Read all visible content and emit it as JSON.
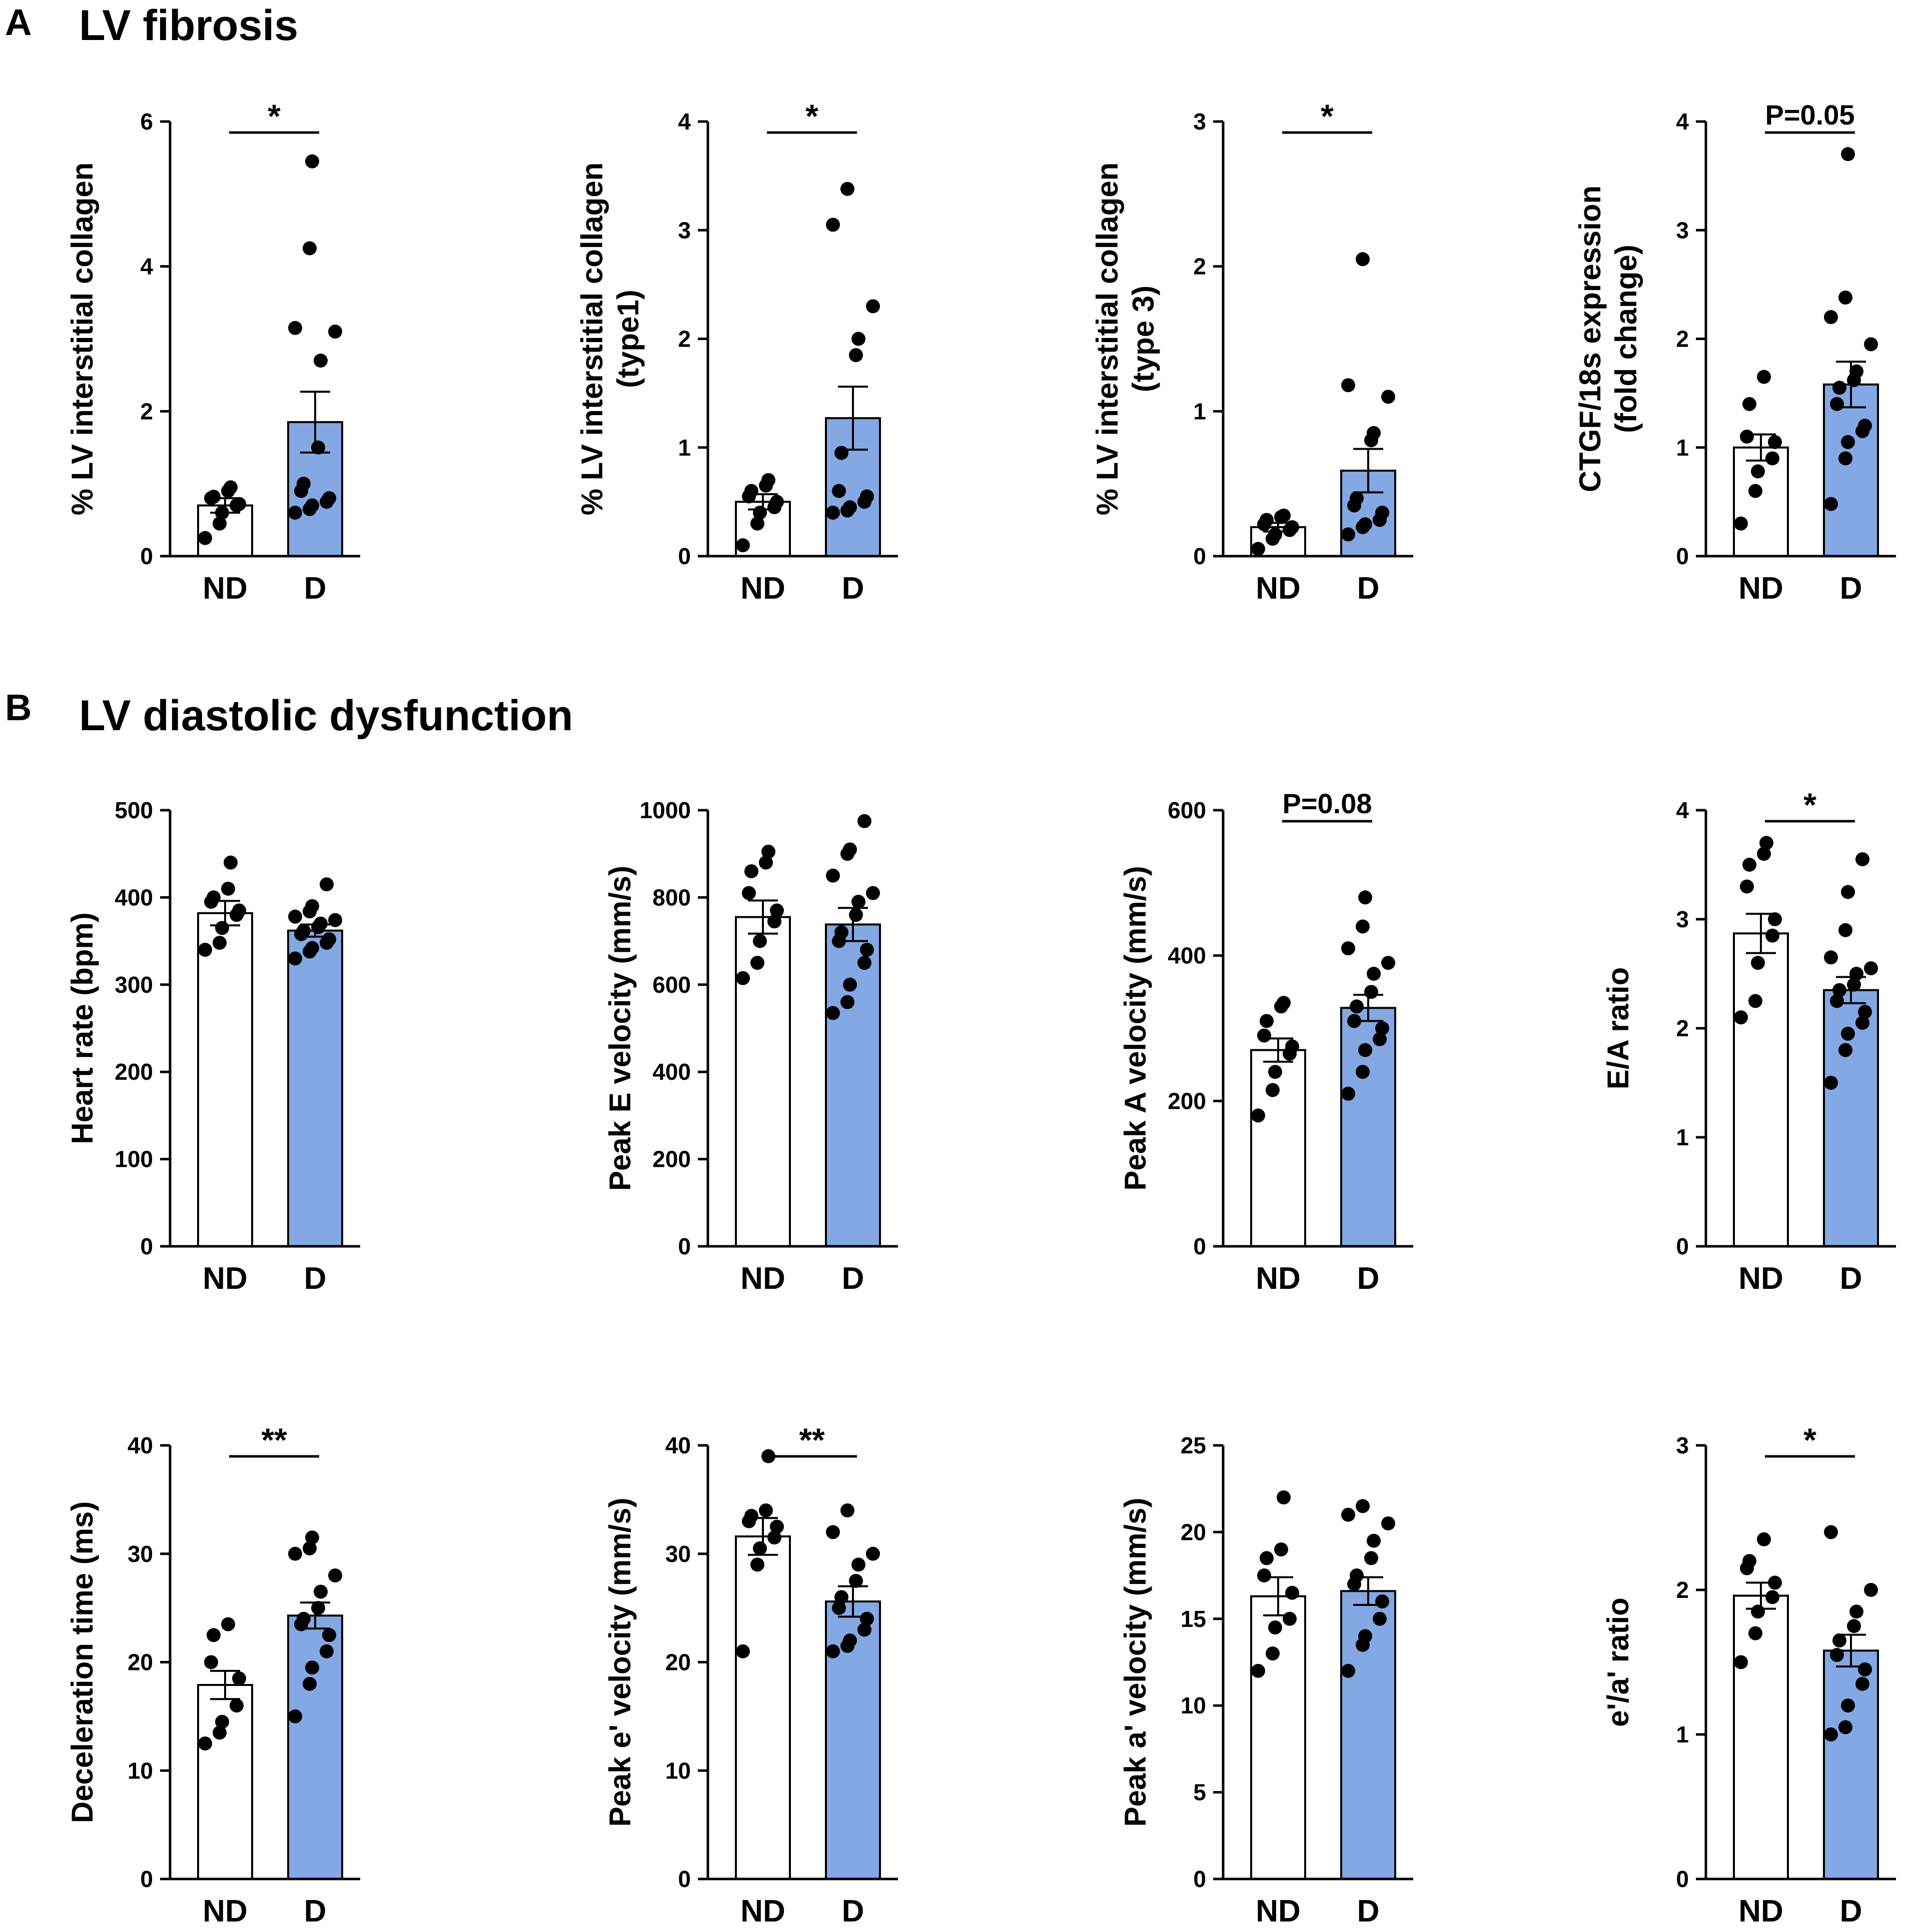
{
  "panels": {
    "a": {
      "letter": "A",
      "title": "LV fibrosis"
    },
    "b": {
      "letter": "B",
      "title": "LV diastolic dysfunction"
    }
  },
  "colors": {
    "nd_fill": "#ffffff",
    "d_fill": "#83a8e3",
    "stroke": "#000000",
    "point": "#000000"
  },
  "chart_data": [
    {
      "type": "bar",
      "id": "collagen",
      "categories": [
        "ND",
        "D"
      ],
      "ylabel_lines": [
        "% LV interstitial collagen"
      ],
      "ylim": [
        0,
        6
      ],
      "yticks": [
        0,
        2,
        4,
        6
      ],
      "tick_labels": [
        "0",
        "2",
        "4",
        "6"
      ],
      "means": [
        0.7,
        1.85
      ],
      "sem": [
        0.1,
        0.42
      ],
      "points": [
        [
          0.25,
          0.45,
          0.6,
          0.7,
          0.72,
          0.8,
          0.82,
          0.9,
          0.95
        ],
        [
          0.6,
          0.65,
          0.7,
          0.75,
          0.8,
          0.9,
          1.0,
          1.5,
          2.7,
          3.1,
          3.15,
          4.25,
          5.45
        ]
      ],
      "significance": "*"
    },
    {
      "type": "bar",
      "id": "collagen1",
      "categories": [
        "ND",
        "D"
      ],
      "ylabel_lines": [
        "% LV interstitial collagen",
        "(type1)"
      ],
      "ylim": [
        0,
        4
      ],
      "yticks": [
        0,
        1,
        2,
        3,
        4
      ],
      "tick_labels": [
        "0",
        "1",
        "2",
        "3",
        "4"
      ],
      "means": [
        0.5,
        1.27
      ],
      "sem": [
        0.07,
        0.29
      ],
      "points": [
        [
          0.1,
          0.3,
          0.4,
          0.45,
          0.5,
          0.55,
          0.6,
          0.65,
          0.7
        ],
        [
          0.4,
          0.42,
          0.45,
          0.5,
          0.55,
          0.6,
          0.95,
          1.85,
          2.0,
          2.3,
          3.05,
          3.38
        ]
      ],
      "significance": "*"
    },
    {
      "type": "bar",
      "id": "collagen3",
      "categories": [
        "ND",
        "D"
      ],
      "ylabel_lines": [
        "% LV interstitial collagen",
        "(type 3)"
      ],
      "ylim": [
        0,
        3
      ],
      "yticks": [
        0,
        1,
        2,
        3
      ],
      "tick_labels": [
        "0",
        "1",
        "2",
        "3"
      ],
      "means": [
        0.2,
        0.59
      ],
      "sem": [
        0.03,
        0.15
      ],
      "points": [
        [
          0.05,
          0.12,
          0.15,
          0.18,
          0.2,
          0.22,
          0.25,
          0.27,
          0.28
        ],
        [
          0.15,
          0.2,
          0.22,
          0.25,
          0.3,
          0.35,
          0.4,
          0.8,
          0.85,
          1.1,
          1.18,
          2.05
        ]
      ],
      "significance": "*"
    },
    {
      "type": "bar",
      "id": "ctgf",
      "categories": [
        "ND",
        "D"
      ],
      "ylabel_lines": [
        "CTGF/18s expression",
        "(fold change)"
      ],
      "ylim": [
        0,
        4
      ],
      "yticks": [
        0,
        1,
        2,
        3,
        4
      ],
      "tick_labels": [
        "0",
        "1",
        "2",
        "3",
        "4"
      ],
      "means": [
        1.0,
        1.58
      ],
      "sem": [
        0.12,
        0.21
      ],
      "points": [
        [
          0.3,
          0.6,
          0.78,
          0.9,
          1.05,
          1.1,
          1.4,
          1.65
        ],
        [
          0.48,
          0.9,
          1.05,
          1.15,
          1.2,
          1.4,
          1.55,
          1.62,
          1.7,
          1.95,
          2.2,
          2.38,
          3.7
        ]
      ],
      "significance": "P=0.05"
    },
    {
      "type": "bar",
      "id": "hr",
      "categories": [
        "ND",
        "D"
      ],
      "ylabel_lines": [
        "Heart rate (bpm)"
      ],
      "ylim": [
        0,
        500
      ],
      "yticks": [
        0,
        100,
        200,
        300,
        400,
        500
      ],
      "tick_labels": [
        "0",
        "100",
        "200",
        "300",
        "400",
        "500"
      ],
      "means": [
        382,
        362
      ],
      "sem": [
        14,
        7
      ],
      "points": [
        [
          340,
          348,
          365,
          380,
          385,
          395,
          400,
          410,
          440
        ],
        [
          330,
          338,
          342,
          348,
          352,
          358,
          362,
          366,
          370,
          374,
          378,
          384,
          390,
          415
        ]
      ],
      "significance": ""
    },
    {
      "type": "bar",
      "id": "peakE",
      "categories": [
        "ND",
        "D"
      ],
      "ylabel_lines": [
        "Peak E velocity (mm/s)"
      ],
      "ylim": [
        0,
        1000
      ],
      "yticks": [
        0,
        200,
        400,
        600,
        800,
        1000
      ],
      "tick_labels": [
        "0",
        "200",
        "400",
        "600",
        "800",
        "1000"
      ],
      "means": [
        755,
        738
      ],
      "sem": [
        38,
        38
      ],
      "points": [
        [
          615,
          650,
          700,
          745,
          770,
          810,
          860,
          880,
          905
        ],
        [
          535,
          560,
          600,
          650,
          680,
          700,
          720,
          760,
          790,
          810,
          850,
          900,
          910,
          975
        ]
      ],
      "significance": ""
    },
    {
      "type": "bar",
      "id": "peakA",
      "categories": [
        "ND",
        "D"
      ],
      "ylabel_lines": [
        "Peak A velocity (mm/s)"
      ],
      "ylim": [
        0,
        600
      ],
      "yticks": [
        0,
        200,
        400,
        600
      ],
      "tick_labels": [
        "0",
        "200",
        "400",
        "600"
      ],
      "means": [
        270,
        328
      ],
      "sem": [
        16,
        18
      ],
      "points": [
        [
          180,
          215,
          240,
          265,
          275,
          290,
          310,
          330,
          335
        ],
        [
          210,
          240,
          270,
          285,
          300,
          310,
          330,
          350,
          375,
          390,
          410,
          440,
          480
        ]
      ],
      "significance": "P=0.08"
    },
    {
      "type": "bar",
      "id": "ea",
      "categories": [
        "ND",
        "D"
      ],
      "ylabel_lines": [
        "E/A ratio"
      ],
      "ylim": [
        0,
        4
      ],
      "yticks": [
        0,
        1,
        2,
        3,
        4
      ],
      "tick_labels": [
        "0",
        "1",
        "2",
        "3",
        "4"
      ],
      "means": [
        2.87,
        2.35
      ],
      "sem": [
        0.18,
        0.12
      ],
      "points": [
        [
          2.1,
          2.25,
          2.6,
          2.85,
          3.0,
          3.3,
          3.5,
          3.6,
          3.7
        ],
        [
          1.5,
          1.8,
          1.95,
          2.05,
          2.15,
          2.25,
          2.35,
          2.4,
          2.5,
          2.55,
          2.65,
          2.9,
          3.25,
          3.55
        ]
      ],
      "significance": "*"
    },
    {
      "type": "bar",
      "id": "dt",
      "categories": [
        "ND",
        "D"
      ],
      "ylabel_lines": [
        "Deceleration time (ms)"
      ],
      "ylim": [
        0,
        40
      ],
      "yticks": [
        0,
        10,
        20,
        30,
        40
      ],
      "tick_labels": [
        "0",
        "10",
        "20",
        "30",
        "40"
      ],
      "means": [
        17.9,
        24.3
      ],
      "sem": [
        1.3,
        1.2
      ],
      "points": [
        [
          12.5,
          13.5,
          14.5,
          16,
          18.5,
          20,
          22.5,
          23.5
        ],
        [
          15,
          18,
          19.5,
          21,
          22.5,
          23.5,
          24,
          25,
          26.5,
          28,
          30,
          30.5,
          31.5
        ]
      ],
      "significance": "**"
    },
    {
      "type": "bar",
      "id": "eprime",
      "categories": [
        "ND",
        "D"
      ],
      "ylabel_lines": [
        "Peak e' velocity (mm/s)"
      ],
      "ylim": [
        0,
        40
      ],
      "yticks": [
        0,
        10,
        20,
        30,
        40
      ],
      "tick_labels": [
        "0",
        "10",
        "20",
        "30",
        "40"
      ],
      "means": [
        31.6,
        25.6
      ],
      "sem": [
        1.7,
        1.4
      ],
      "points": [
        [
          21,
          29,
          30.5,
          31.5,
          32.5,
          33,
          33.5,
          34,
          39
        ],
        [
          21,
          21.5,
          22,
          23,
          24,
          25,
          26,
          27.5,
          29,
          30,
          32,
          34
        ]
      ],
      "significance": "**"
    },
    {
      "type": "bar",
      "id": "aprime",
      "categories": [
        "ND",
        "D"
      ],
      "ylabel_lines": [
        "Peak a' velocity (mm/s)"
      ],
      "ylim": [
        0,
        25
      ],
      "yticks": [
        0,
        5,
        10,
        15,
        20,
        25
      ],
      "tick_labels": [
        "0",
        "5",
        "10",
        "15",
        "20",
        "25"
      ],
      "means": [
        16.3,
        16.6
      ],
      "sem": [
        1.1,
        0.8
      ],
      "points": [
        [
          12,
          13,
          14.5,
          15,
          16.5,
          17.5,
          18.5,
          19,
          22
        ],
        [
          12,
          13.5,
          14,
          15,
          16,
          17,
          17.5,
          18.5,
          19.5,
          20.5,
          21,
          21.5
        ]
      ],
      "significance": ""
    },
    {
      "type": "bar",
      "id": "ratio",
      "categories": [
        "ND",
        "D"
      ],
      "ylabel_lines": [
        "e'/a' ratio"
      ],
      "ylim": [
        0,
        3
      ],
      "yticks": [
        0,
        1,
        2,
        3
      ],
      "tick_labels": [
        "0",
        "1",
        "2",
        "3"
      ],
      "means": [
        1.96,
        1.58
      ],
      "sem": [
        0.09,
        0.11
      ],
      "points": [
        [
          1.5,
          1.7,
          1.85,
          1.95,
          2.05,
          2.15,
          2.2,
          2.35
        ],
        [
          1.0,
          1.05,
          1.2,
          1.35,
          1.45,
          1.55,
          1.65,
          1.75,
          1.85,
          2.0,
          2.4
        ]
      ],
      "significance": "*"
    }
  ]
}
